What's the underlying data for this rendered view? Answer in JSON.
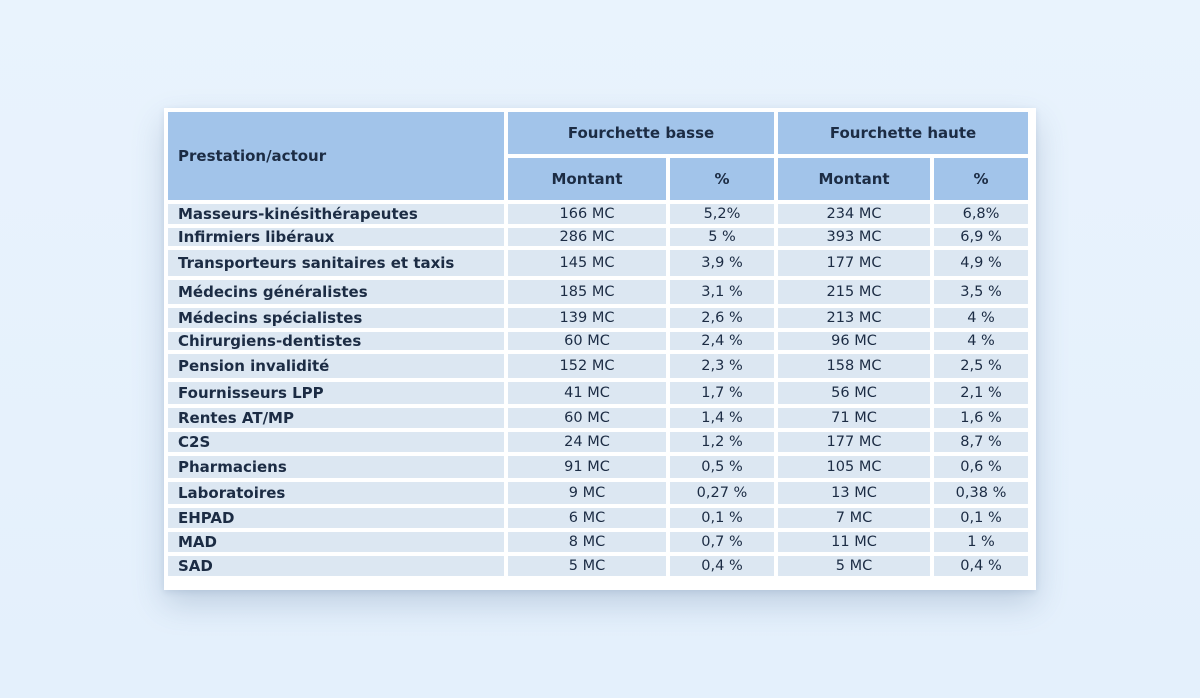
{
  "table": {
    "header": {
      "prestation": "Prestation/actour",
      "group_low": "Fourchette basse",
      "group_high": "Fourchette haute",
      "montant_low": "Montant",
      "pct_low": "%",
      "montant_high": "Montant",
      "pct_high": "%"
    },
    "rows": [
      {
        "name": "Masseurs-kinésithérapeutes",
        "m1": "166 MC",
        "p1": "5,2%",
        "m2": "234  MC",
        "p2": "6,8%"
      },
      {
        "name": "Infirmiers libéraux",
        "m1": "286  MC",
        "p1": "5 %",
        "m2": "393  MC",
        "p2": "6,9 %"
      },
      {
        "name": "Transporteurs sanitaires et taxis",
        "m1": "145 MC",
        "p1": "3,9 %",
        "m2": "177 MC",
        "p2": "4,9 %"
      },
      {
        "name": "Médecins généralistes",
        "m1": "185 MC",
        "p1": "3,1 %",
        "m2": "215 MC",
        "p2": "3,5 %"
      },
      {
        "name": "Médecins spécialistes",
        "m1": "139 MC",
        "p1": "2,6 %",
        "m2": "213 MC",
        "p2": "4 %"
      },
      {
        "name": "Chirurgiens-dentistes",
        "m1": "60 MC",
        "p1": "2,4 %",
        "m2": "96 MC",
        "p2": "4 %"
      },
      {
        "name": "Pension invalidité",
        "m1": "152 MC",
        "p1": "2,3 %",
        "m2": "158 MC",
        "p2": "2,5 %"
      },
      {
        "name": "Fournisseurs LPP",
        "m1": "41 MC",
        "p1": "1,7 %",
        "m2": "56 MC",
        "p2": "2,1 %"
      },
      {
        "name": "Rentes AT/MP",
        "m1": "60 MC",
        "p1": "1,4 %",
        "m2": "71 MC",
        "p2": "1,6 %"
      },
      {
        "name": "C2S",
        "m1": "24 MC",
        "p1": "1,2 %",
        "m2": "177  MC",
        "p2": "8,7 %"
      },
      {
        "name": "Pharmaciens",
        "m1": "91 MC",
        "p1": "0,5 %",
        "m2": "105 MC",
        "p2": "0,6 %"
      },
      {
        "name": "Laboratoires",
        "m1": "9 MC",
        "p1": "0,27 %",
        "m2": "13 MC",
        "p2": "0,38 %"
      },
      {
        "name": "EHPAD",
        "m1": "6 MC",
        "p1": "0,1 %",
        "m2": "7 MC",
        "p2": "0,1 %"
      },
      {
        "name": "MAD",
        "m1": "8 MC",
        "p1": "0,7 %",
        "m2": "11 MC",
        "p2": "1 %"
      },
      {
        "name": "SAD",
        "m1": "5 MC",
        "p1": "0,4 %",
        "m2": "5 MC",
        "p2": "0,4 %"
      }
    ]
  }
}
